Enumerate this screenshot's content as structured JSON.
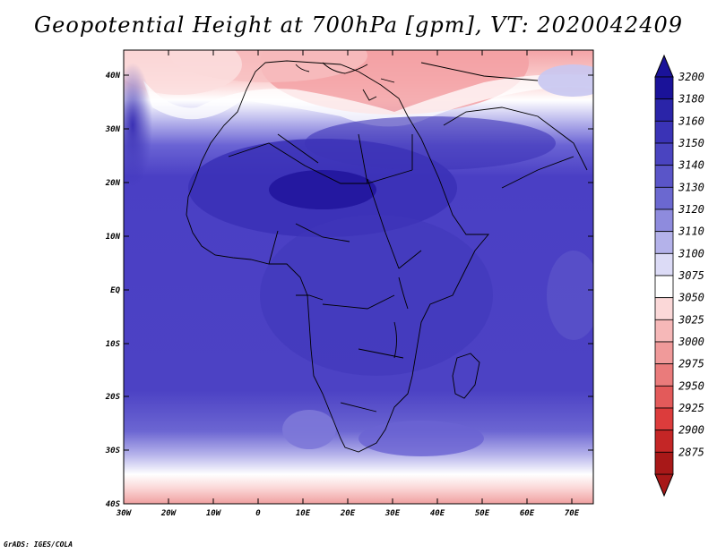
{
  "title": "Geopotential Height at 700hPa [gpm], VT: 2020042409",
  "credit": "GrADS: IGES/COLA",
  "map": {
    "lat_labels": [
      "40N",
      "30N",
      "20N",
      "10N",
      "EQ",
      "10S",
      "20S",
      "30S",
      "40S"
    ],
    "lon_labels": [
      "30W",
      "20W",
      "10W",
      "0",
      "10E",
      "20E",
      "30E",
      "40E",
      "50E",
      "60E",
      "70E"
    ]
  },
  "colorbar": {
    "levels": [
      "3200",
      "3180",
      "3160",
      "3150",
      "3140",
      "3130",
      "3120",
      "3110",
      "3100",
      "3075",
      "3050",
      "3025",
      "3000",
      "2975",
      "2950",
      "2925",
      "2900",
      "2875"
    ],
    "colors": [
      "#1a1299",
      "#2a24a8",
      "#3a33b6",
      "#4a44c0",
      "#5a55c8",
      "#6b68d0",
      "#8e8bdd",
      "#b4b2ea",
      "#dcdbf6",
      "#ffffff",
      "#fbd8d8",
      "#f6b8b8",
      "#f09a9a",
      "#ea7b7b",
      "#e35a5a",
      "#dc3c3c",
      "#c42626",
      "#a81818"
    ]
  },
  "colors": {
    "ocean_mid": "#4b3fc2",
    "land_core": "#2e25ac",
    "north_warm": "#f4a5a5",
    "south_warm": "#f2a9a9"
  }
}
